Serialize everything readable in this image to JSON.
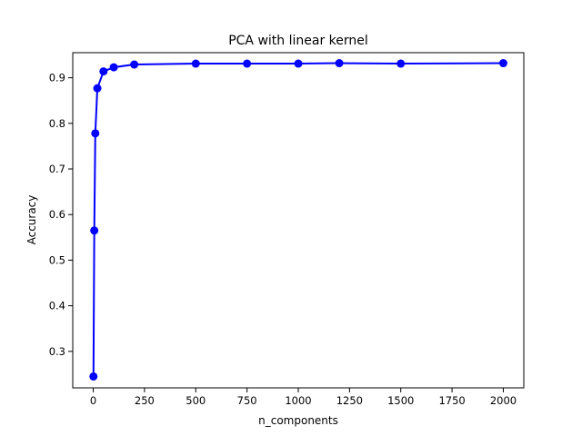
{
  "chart_data": {
    "type": "line",
    "title": "PCA with linear kernel",
    "xlabel": "n_components",
    "ylabel": "Accuracy",
    "xlim": [
      -100,
      2100
    ],
    "ylim": [
      0.22,
      0.955
    ],
    "grid": false,
    "x_ticks": [
      0,
      250,
      500,
      750,
      1000,
      1250,
      1500,
      1750,
      2000
    ],
    "x_tick_labels": [
      "0",
      "250",
      "500",
      "750",
      "1000",
      "1250",
      "1500",
      "1750",
      "2000"
    ],
    "y_ticks": [
      0.3,
      0.4,
      0.5,
      0.6,
      0.7,
      0.8,
      0.9
    ],
    "y_tick_labels": [
      "0.3",
      "0.4",
      "0.5",
      "0.6",
      "0.7",
      "0.8",
      "0.9"
    ],
    "series": [
      {
        "color": "#0000ff",
        "marker": "circle",
        "x": [
          1,
          5,
          10,
          20,
          50,
          100,
          200,
          500,
          750,
          1000,
          1200,
          1500,
          2000
        ],
        "y": [
          0.245,
          0.565,
          0.778,
          0.877,
          0.914,
          0.923,
          0.929,
          0.931,
          0.931,
          0.931,
          0.932,
          0.931,
          0.932
        ]
      }
    ]
  }
}
